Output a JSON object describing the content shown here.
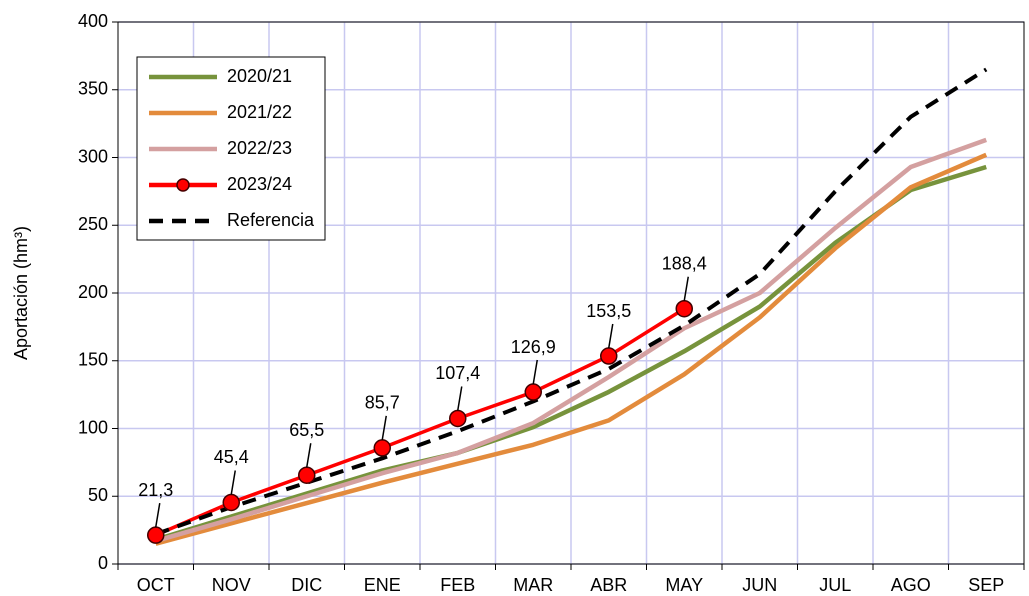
{
  "chart_data": {
    "type": "line",
    "y_label": "Aportación (hm³)",
    "categories": [
      "OCT",
      "NOV",
      "DIC",
      "ENE",
      "FEB",
      "MAR",
      "ABR",
      "MAY",
      "JUN",
      "JUL",
      "AGO",
      "SEP"
    ],
    "ylim": [
      0,
      400
    ],
    "yticks": [
      0,
      50,
      100,
      150,
      200,
      250,
      300,
      350,
      400
    ],
    "grid": true,
    "legend": "upper left",
    "series": [
      {
        "name": "2020/21",
        "color": "#77933c",
        "values": [
          18,
          35,
          52,
          69,
          82,
          101,
          127,
          157,
          190,
          237,
          276,
          293
        ]
      },
      {
        "name": "2021/22",
        "color": "#e38b3c",
        "values": [
          15,
          30,
          45,
          60,
          74,
          88,
          106,
          140,
          182,
          233,
          278,
          302
        ]
      },
      {
        "name": "2022/23",
        "color": "#d4a0a0",
        "values": [
          17,
          33,
          50,
          67,
          82,
          104,
          138,
          174,
          200,
          248,
          293,
          313
        ]
      },
      {
        "name": "2023/24",
        "color": "#ff0000",
        "marker": true,
        "values": [
          21.3,
          45.4,
          65.5,
          85.7,
          107.4,
          126.9,
          153.5,
          188.4,
          null,
          null,
          null,
          null
        ],
        "value_labels": [
          "21,3",
          "45,4",
          "65,5",
          "85,7",
          "107,4",
          "126,9",
          "153,5",
          "188,4",
          null,
          null,
          null,
          null
        ]
      },
      {
        "name": "Referencia",
        "color": "#000000",
        "dashed": true,
        "values": [
          22,
          42,
          60,
          78,
          98,
          120,
          144,
          176,
          214,
          275,
          330,
          365
        ]
      }
    ]
  }
}
